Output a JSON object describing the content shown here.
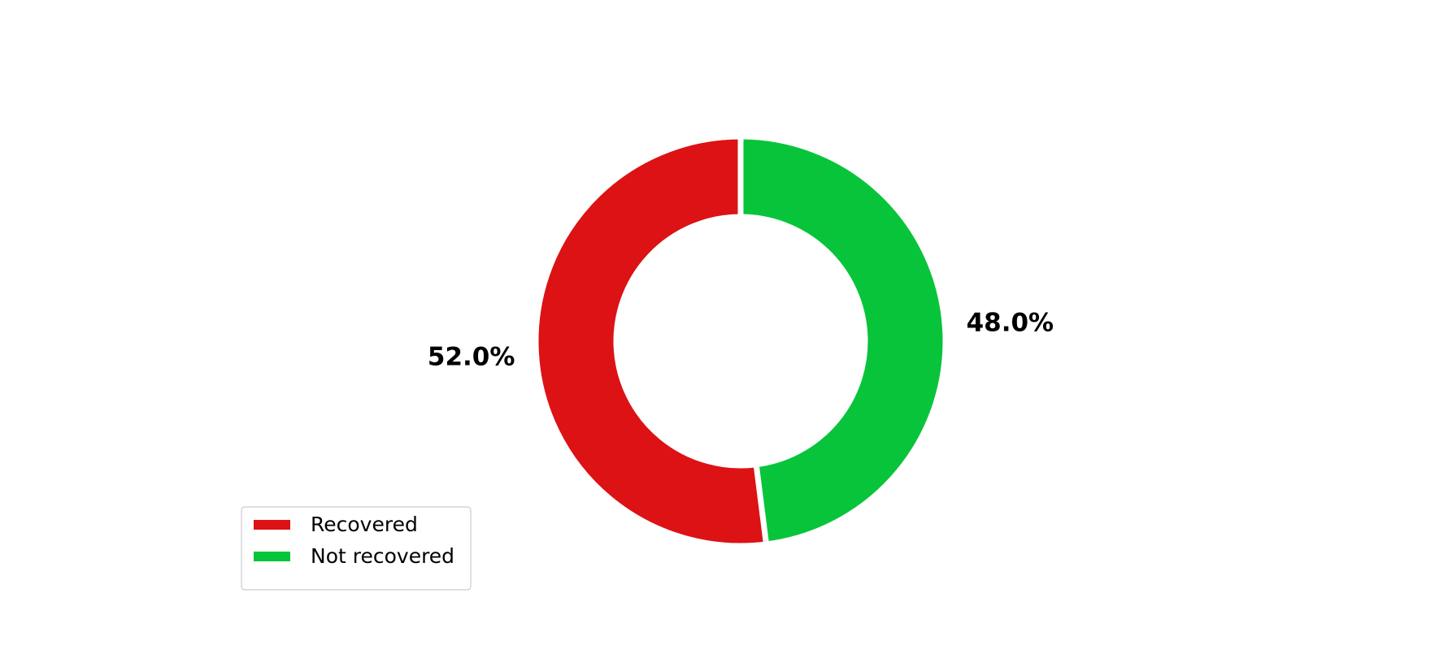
{
  "chart_data": {
    "type": "pie",
    "categories": [
      "Recovered",
      "Not recovered"
    ],
    "values": [
      52.0,
      48.0
    ],
    "value_labels": [
      "52.0%",
      "48.0%"
    ],
    "colors": [
      "#dc1215",
      "#08c43a"
    ],
    "legend": "lower left"
  }
}
